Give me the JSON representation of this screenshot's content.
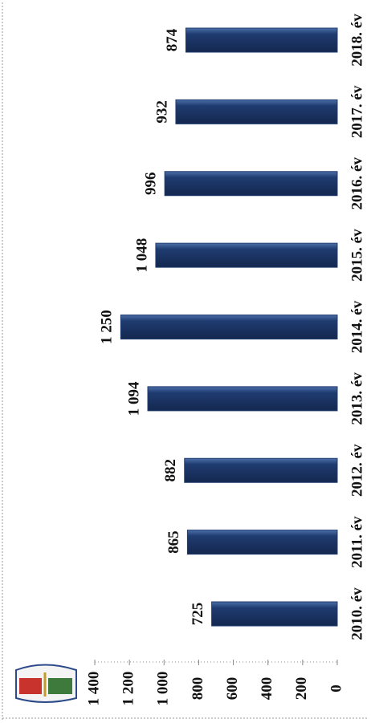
{
  "chart_data": {
    "type": "bar",
    "categories": [
      "2010. év",
      "2011. év",
      "2012. év",
      "2013. év",
      "2014. év",
      "2015. év",
      "2016. év",
      "2017. év",
      "2018. év"
    ],
    "values": [
      725,
      865,
      882,
      1094,
      1250,
      1048,
      996,
      932,
      874
    ],
    "value_labels": [
      "725",
      "865",
      "882",
      "1 094",
      "1 250",
      "1 048",
      "996",
      "932",
      "874"
    ],
    "color": "#1f3b70",
    "ylim": [
      0,
      1400
    ],
    "yticks": [
      0,
      200,
      400,
      600,
      800,
      {
        "value": 1000,
        "label": "1 000"
      },
      {
        "value": 1200,
        "label": "1 200"
      },
      {
        "value": 1400,
        "label": "1 400"
      }
    ]
  }
}
